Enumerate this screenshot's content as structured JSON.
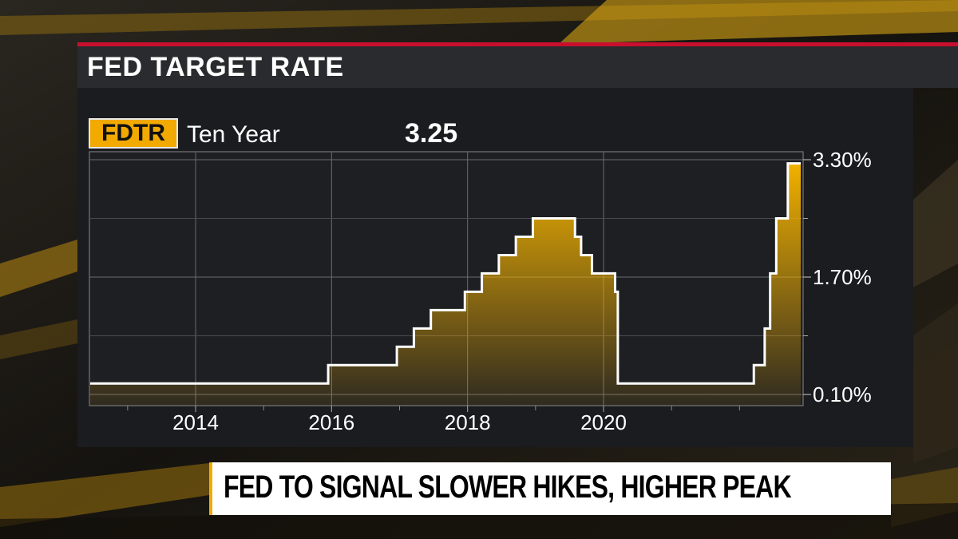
{
  "header": {
    "title": "FED TARGET RATE"
  },
  "ticker": {
    "symbol": "FDTR",
    "period": "Ten Year",
    "current_value": "3.25"
  },
  "headline": {
    "text": "FED TO SIGNAL SLOWER HIKES, HIGHER PEAK"
  },
  "colors": {
    "accent": "#f2a900",
    "brand_red": "#c8102e",
    "panel": "#1b1c1f",
    "line": "#ffffff"
  },
  "chart_data": {
    "type": "area",
    "title": "FED TARGET RATE",
    "xlabel": "",
    "ylabel": "",
    "x_range": [
      2012.45,
      2022.9
    ],
    "ylim": [
      0.1,
      3.3
    ],
    "x_ticks": [
      {
        "value": 2014,
        "label": "2014"
      },
      {
        "value": 2016,
        "label": "2016"
      },
      {
        "value": 2018,
        "label": "2018"
      },
      {
        "value": 2020,
        "label": "2020"
      }
    ],
    "y_ticks": [
      {
        "value": 0.1,
        "label": "0.10%"
      },
      {
        "value": 1.7,
        "label": "1.70%"
      },
      {
        "value": 3.3,
        "label": "3.30%"
      }
    ],
    "grid": true,
    "axis_position": "right",
    "step_series": {
      "x": [
        2012.45,
        2015.95,
        2016.96,
        2017.21,
        2017.46,
        2017.96,
        2018.21,
        2018.46,
        2018.71,
        2018.96,
        2019.58,
        2019.67,
        2019.83,
        2020.17,
        2020.21,
        2022.21,
        2022.37,
        2022.45,
        2022.54,
        2022.71,
        2022.87,
        2022.9
      ],
      "y": [
        0.25,
        0.5,
        0.75,
        1.0,
        1.25,
        1.5,
        1.75,
        2.0,
        2.25,
        2.5,
        2.25,
        2.0,
        1.75,
        1.5,
        0.25,
        0.5,
        1.0,
        1.75,
        2.5,
        3.25,
        3.25,
        3.25
      ]
    }
  }
}
